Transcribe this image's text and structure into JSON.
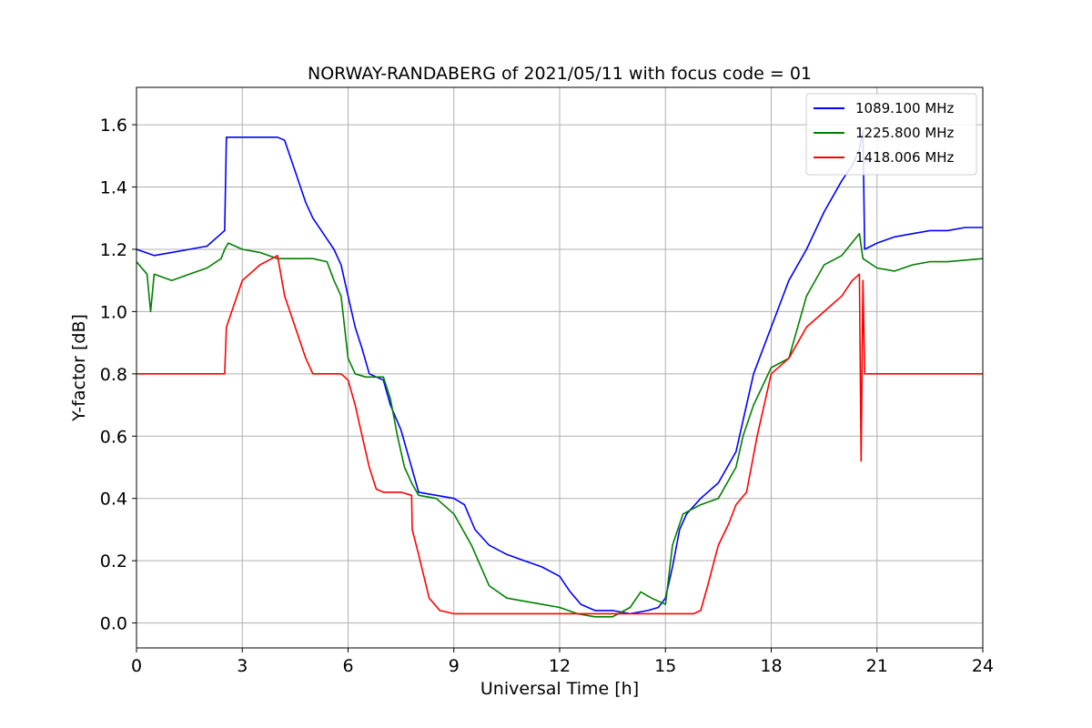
{
  "chart_data": {
    "type": "line",
    "title": "NORWAY-RANDABERG of 2021/05/11 with focus code = 01",
    "xlabel": "Universal Time [h]",
    "ylabel": "Y-factor [dB]",
    "xlim": [
      0,
      24
    ],
    "ylim": [
      -0.08,
      1.72
    ],
    "xticks": [
      0,
      3,
      6,
      9,
      12,
      15,
      18,
      21,
      24
    ],
    "xtick_labels": [
      "0",
      "3",
      "6",
      "9",
      "12",
      "15",
      "18",
      "21",
      "24"
    ],
    "yticks": [
      0.0,
      0.2,
      0.4,
      0.6,
      0.8,
      1.0,
      1.2,
      1.4,
      1.6
    ],
    "ytick_labels": [
      "0.0",
      "0.2",
      "0.4",
      "0.6",
      "0.8",
      "1.0",
      "1.2",
      "1.4",
      "1.6"
    ],
    "grid": true,
    "legend_position": "top-right",
    "series": [
      {
        "name": "1089.100 MHz",
        "color": "#0000ff",
        "x": [
          0,
          0.5,
          1,
          1.5,
          2,
          2.4,
          2.5,
          2.55,
          3,
          3.5,
          4,
          4.2,
          4.5,
          4.8,
          5,
          5.3,
          5.6,
          5.8,
          6,
          6.2,
          6.4,
          6.6,
          7,
          7.2,
          7.5,
          7.8,
          8,
          8.5,
          9,
          9.3,
          9.6,
          10,
          10.5,
          11,
          11.5,
          12,
          12.3,
          12.6,
          13,
          13.5,
          14,
          14.5,
          14.8,
          15,
          15.2,
          15.4,
          15.6,
          16,
          16.5,
          17,
          17.2,
          17.5,
          18,
          18.5,
          19,
          19.5,
          20,
          20.3,
          20.5,
          20.6,
          20.65,
          21,
          21.5,
          22,
          22.5,
          23,
          23.5,
          24
        ],
        "y": [
          1.2,
          1.18,
          1.19,
          1.2,
          1.21,
          1.25,
          1.26,
          1.56,
          1.56,
          1.56,
          1.56,
          1.55,
          1.45,
          1.35,
          1.3,
          1.25,
          1.2,
          1.15,
          1.05,
          0.95,
          0.88,
          0.8,
          0.78,
          0.7,
          0.62,
          0.5,
          0.42,
          0.41,
          0.4,
          0.38,
          0.3,
          0.25,
          0.22,
          0.2,
          0.18,
          0.15,
          0.1,
          0.06,
          0.04,
          0.04,
          0.03,
          0.04,
          0.05,
          0.08,
          0.18,
          0.3,
          0.35,
          0.4,
          0.45,
          0.55,
          0.65,
          0.8,
          0.95,
          1.1,
          1.2,
          1.32,
          1.42,
          1.47,
          1.52,
          1.58,
          1.2,
          1.22,
          1.24,
          1.25,
          1.26,
          1.26,
          1.27,
          1.27
        ]
      },
      {
        "name": "1225.800 MHz",
        "color": "#008000",
        "x": [
          0,
          0.3,
          0.4,
          0.5,
          1,
          1.5,
          2,
          2.4,
          2.5,
          2.6,
          3,
          3.5,
          4,
          4.5,
          5,
          5.4,
          5.6,
          5.8,
          6,
          6.2,
          6.5,
          7,
          7.2,
          7.4,
          7.6,
          7.8,
          8,
          8.5,
          9,
          9.5,
          10,
          10.5,
          11,
          11.5,
          12,
          12.5,
          13,
          13.5,
          14,
          14.3,
          14.6,
          15,
          15.2,
          15.5,
          16,
          16.5,
          17,
          17.2,
          17.5,
          18,
          18.5,
          19,
          19.5,
          20,
          20.5,
          20.6,
          21,
          21.5,
          22,
          22.5,
          23,
          24
        ],
        "y": [
          1.16,
          1.12,
          1.0,
          1.12,
          1.1,
          1.12,
          1.14,
          1.17,
          1.2,
          1.22,
          1.2,
          1.19,
          1.17,
          1.17,
          1.17,
          1.16,
          1.1,
          1.05,
          0.85,
          0.8,
          0.79,
          0.79,
          0.72,
          0.6,
          0.5,
          0.45,
          0.41,
          0.4,
          0.35,
          0.25,
          0.12,
          0.08,
          0.07,
          0.06,
          0.05,
          0.03,
          0.02,
          0.02,
          0.05,
          0.1,
          0.08,
          0.06,
          0.25,
          0.35,
          0.38,
          0.4,
          0.5,
          0.6,
          0.7,
          0.82,
          0.85,
          1.05,
          1.15,
          1.18,
          1.25,
          1.17,
          1.14,
          1.13,
          1.15,
          1.16,
          1.16,
          1.17
        ]
      },
      {
        "name": "1418.006 MHz",
        "color": "#ff0000",
        "x": [
          0,
          0.5,
          1,
          1.5,
          2,
          2.5,
          2.55,
          2.7,
          3,
          3.5,
          4,
          4.2,
          4.5,
          4.8,
          5,
          5.5,
          5.8,
          6,
          6.2,
          6.4,
          6.6,
          6.8,
          7,
          7.5,
          7.8,
          7.82,
          8,
          8.3,
          8.6,
          9,
          9.5,
          10,
          11,
          12,
          12.5,
          13,
          13.5,
          14,
          15,
          15.5,
          15.8,
          16,
          16.2,
          16.5,
          16.8,
          17,
          17.3,
          17.6,
          18,
          18.5,
          19,
          19.5,
          20,
          20.3,
          20.5,
          20.55,
          20.6,
          20.65,
          21,
          22,
          23,
          24
        ],
        "y": [
          0.8,
          0.8,
          0.8,
          0.8,
          0.8,
          0.8,
          0.95,
          1.0,
          1.1,
          1.15,
          1.18,
          1.05,
          0.95,
          0.85,
          0.8,
          0.8,
          0.8,
          0.78,
          0.7,
          0.6,
          0.5,
          0.43,
          0.42,
          0.42,
          0.41,
          0.3,
          0.22,
          0.08,
          0.04,
          0.03,
          0.03,
          0.03,
          0.03,
          0.03,
          0.03,
          0.03,
          0.03,
          0.03,
          0.03,
          0.03,
          0.03,
          0.04,
          0.12,
          0.25,
          0.32,
          0.38,
          0.42,
          0.6,
          0.8,
          0.85,
          0.95,
          1.0,
          1.05,
          1.1,
          1.12,
          0.52,
          1.1,
          0.8,
          0.8,
          0.8,
          0.8,
          0.8
        ]
      }
    ]
  }
}
